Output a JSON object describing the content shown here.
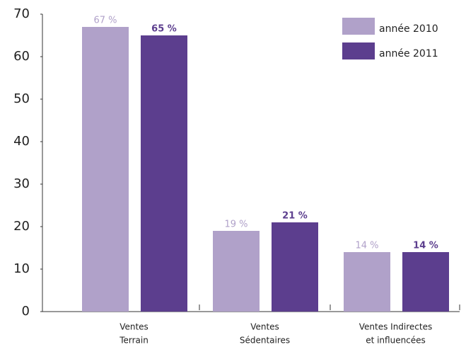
{
  "chart_data": {
    "type": "bar",
    "categories": [
      [
        "Ventes",
        "Terrain"
      ],
      [
        "Ventes",
        "Sédentaires"
      ],
      [
        "Ventes Indirectes",
        "et influencées"
      ]
    ],
    "series": [
      {
        "name": "année 2010",
        "color": "#b0a1c9",
        "values": [
          67,
          19,
          14
        ],
        "value_labels": [
          "67 %",
          "19 %",
          "14 %"
        ]
      },
      {
        "name": "année 2011",
        "color": "#5c3e8e",
        "values": [
          65,
          21,
          14
        ],
        "value_labels": [
          "65 %",
          "21 %",
          "14 %"
        ]
      }
    ],
    "ylim": [
      0,
      70
    ],
    "yticks": [
      0,
      10,
      20,
      30,
      40,
      50,
      60,
      70
    ],
    "legend": "upper right"
  }
}
